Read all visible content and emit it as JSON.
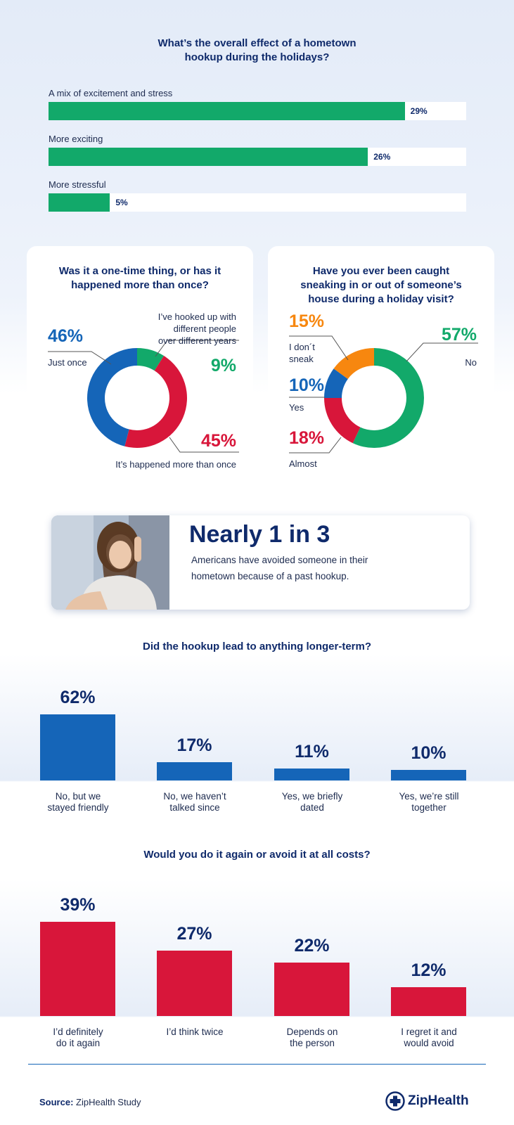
{
  "colors": {
    "navy": "#0f2a6b",
    "green": "#12a96a",
    "blue": "#1565b8",
    "red": "#d8163a",
    "orange": "#f7870f"
  },
  "chart_data": [
    {
      "type": "bar",
      "orientation": "horizontal",
      "title": "What’s the overall effect of a hometown hookup during the holidays?",
      "categories": [
        "A mix of excitement and stress",
        "More exciting",
        "More stressful"
      ],
      "values": [
        29,
        26,
        5
      ],
      "value_labels": [
        "29%",
        "26%",
        "5%"
      ]
    },
    {
      "type": "pie",
      "donut": true,
      "title": "Was it a one-time thing, or has it happened more than once?",
      "categories": [
        "Just once",
        "It’s happened more than once",
        "I’ve hooked up with different people over different years"
      ],
      "values": [
        46,
        45,
        9
      ],
      "value_labels": [
        "46%",
        "45%",
        "9%"
      ],
      "colors": [
        "#1565b8",
        "#d8163a",
        "#12a96a"
      ]
    },
    {
      "type": "pie",
      "donut": true,
      "title": "Have you ever been caught sneaking in or out of someone’s house during a holiday visit?",
      "categories": [
        "No",
        "Almost",
        "Yes",
        "I don´t sneak"
      ],
      "values": [
        57,
        18,
        10,
        15
      ],
      "value_labels": [
        "57%",
        "18%",
        "10%",
        "15%"
      ],
      "colors": [
        "#12a96a",
        "#d8163a",
        "#1565b8",
        "#f7870f"
      ]
    },
    {
      "type": "bar",
      "title": "Did the hookup lead to anything longer-term?",
      "categories": [
        "No, but we stayed friendly",
        "No, we haven’t talked since",
        "Yes, we briefly dated",
        "Yes, we’re still together"
      ],
      "category_lines": [
        [
          "No, but we",
          "stayed friendly"
        ],
        [
          "No, we haven’t",
          "talked since"
        ],
        [
          "Yes, we briefly",
          "dated"
        ],
        [
          "Yes, we’re still",
          "together"
        ]
      ],
      "values": [
        62,
        17,
        11,
        10
      ],
      "value_labels": [
        "62%",
        "17%",
        "11%",
        "10%"
      ]
    },
    {
      "type": "bar",
      "title": "Would you do it again or avoid it at all costs?",
      "categories": [
        "I’d definitely do it again",
        "I’d think twice",
        "Depends on the person",
        "I regret it and would avoid"
      ],
      "category_lines": [
        [
          "I’d definitely",
          "do it again"
        ],
        [
          "I’d think twice"
        ],
        [
          "Depends on",
          "the person"
        ],
        [
          "I regret it and",
          "would avoid"
        ]
      ],
      "values": [
        39,
        27,
        22,
        12
      ],
      "value_labels": [
        "39%",
        "27%",
        "22%",
        "12%"
      ]
    }
  ],
  "titles": {
    "effect_line1": "What’s the overall effect of a hometown",
    "effect_line2": "hookup during the holidays?",
    "onetime_line1": "Was it a one-time thing, or has it",
    "onetime_line2": "happened more than once?",
    "caught_line1": "Have you ever been caught",
    "caught_line2": "sneaking in or out of someone’s",
    "caught_line3": "house during a holiday visit?",
    "longterm": "Did the hookup lead to anything longer-term?",
    "again": "Would you do it again or avoid it at all costs?"
  },
  "donut1_labels": {
    "multi_line1": "I’ve hooked up with",
    "multi_line2": "different people",
    "multi_line3": "over different years"
  },
  "donut2_labels": {
    "nosneak_line1": "I don´t",
    "nosneak_line2": "sneak"
  },
  "callout": {
    "headline": "Nearly 1 in 3",
    "line1": "Americans have avoided someone in their",
    "line2": "hometown because of a past hookup."
  },
  "footer": {
    "source_label": "Source:",
    "source_value": "ZipHealth Study",
    "brand": "ZipHealth"
  }
}
